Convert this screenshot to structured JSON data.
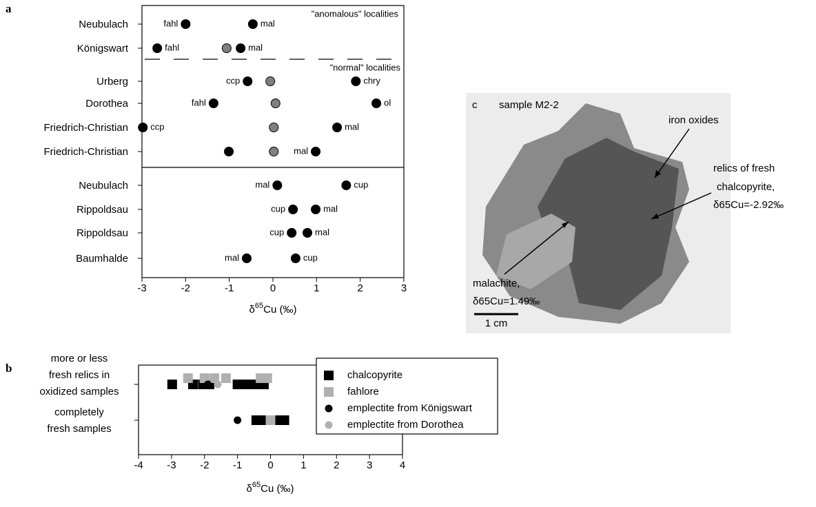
{
  "chart_data": [
    {
      "panel": "a",
      "type": "dot",
      "xlim": [
        -3,
        3
      ],
      "xticks": [
        -3,
        -2,
        -1,
        0,
        1,
        2,
        3
      ],
      "xlabel": {
        "symbol": "δ",
        "sup": "65",
        "rest": "Cu (‰)"
      },
      "annotations": [
        "\"anomalous\" localities",
        "\"normal\" localities"
      ],
      "rows": [
        {
          "name": "Neubulach",
          "points": [
            {
              "x": -2.0,
              "label": "fahl",
              "color": "#000000"
            },
            {
              "x": -0.46,
              "label": "mal",
              "color": "#000000"
            }
          ]
        },
        {
          "name": "Königswart",
          "points": [
            {
              "x": -2.65,
              "label": "fahl",
              "color": "#000000"
            },
            {
              "x": -1.06,
              "color": "#808080"
            },
            {
              "x": -0.74,
              "label": "mal",
              "color": "#000000"
            }
          ]
        },
        {
          "name": "Urberg",
          "points": [
            {
              "x": -0.58,
              "label": "ccp",
              "color": "#000000"
            },
            {
              "x": -0.06,
              "color": "#808080"
            },
            {
              "x": 1.9,
              "label": "chry",
              "color": "#000000"
            }
          ]
        },
        {
          "name": "Dorothea",
          "points": [
            {
              "x": -1.36,
              "label": "fahl",
              "color": "#000000"
            },
            {
              "x": 0.06,
              "color": "#808080"
            },
            {
              "x": 2.37,
              "label": "ol",
              "color": "#000000"
            }
          ]
        },
        {
          "name": "Friedrich-Christian",
          "points": [
            {
              "x": -2.98,
              "label": "ccp",
              "color": "#000000"
            },
            {
              "x": 0.02,
              "color": "#808080"
            },
            {
              "x": 1.47,
              "label": "mal",
              "color": "#000000"
            }
          ]
        },
        {
          "name": "Friedrich-Christian",
          "points": [
            {
              "x": -1.01,
              "color": "#000000"
            },
            {
              "x": 0.02,
              "color": "#808080"
            },
            {
              "x": 0.98,
              "label": "mal",
              "color": "#000000"
            }
          ]
        },
        {
          "name": "Neubulach",
          "points": [
            {
              "x": 0.1,
              "label": "mal",
              "color": "#000000"
            },
            {
              "x": 1.68,
              "label": "cup",
              "color": "#000000"
            }
          ]
        },
        {
          "name": "Rippoldsau",
          "points": [
            {
              "x": 0.46,
              "label": "cup",
              "color": "#000000"
            },
            {
              "x": 0.98,
              "label": "mal",
              "color": "#000000"
            }
          ]
        },
        {
          "name": "Rippoldsau",
          "points": [
            {
              "x": 0.43,
              "label": "cup",
              "color": "#000000"
            },
            {
              "x": 0.79,
              "label": "mal",
              "color": "#000000"
            }
          ]
        },
        {
          "name": "Baumhalde",
          "points": [
            {
              "x": -0.6,
              "label": "mal",
              "color": "#000000"
            },
            {
              "x": 0.52,
              "label": "cup",
              "color": "#000000"
            }
          ]
        }
      ]
    },
    {
      "panel": "b",
      "type": "strip",
      "xlim": [
        -4,
        4
      ],
      "xticks": [
        -4,
        -3,
        -2,
        -1,
        0,
        1,
        2,
        3,
        4
      ],
      "xlabel": {
        "symbol": "δ",
        "sup": "65",
        "rest": "Cu (‰)"
      },
      "categories": [
        [
          "more or less",
          "fresh relics in",
          "oxidized samples"
        ],
        [
          "completely",
          "fresh samples"
        ]
      ],
      "series": [
        {
          "name": "chalcopyrite",
          "marker": "square",
          "color": "#000000",
          "values": [
            [
              -2.98,
              -2.35,
              -2.05,
              -1.85,
              -1.0,
              -0.8,
              -0.6,
              -0.4,
              -0.2
            ],
            [
              -0.43,
              -0.25,
              0.0,
              0.2,
              0.42
            ]
          ]
        },
        {
          "name": "fahlore",
          "marker": "square",
          "color": "#b0b0b0",
          "values": [
            [
              -2.5,
              -2.0,
              -1.7,
              -1.35,
              -0.3,
              -0.1
            ],
            [
              0.0
            ]
          ]
        },
        {
          "name": "emplectite from Königswart",
          "marker": "circle",
          "color": "#000000",
          "values": [
            [
              -1.9
            ],
            [
              -1.0
            ]
          ]
        },
        {
          "name": "emplectite from Dorothea",
          "marker": "circle",
          "color": "#b0b0b0",
          "values": [
            [
              -1.6
            ],
            []
          ]
        }
      ]
    }
  ],
  "photo": {
    "panel": "c",
    "title": "sample M2-2",
    "labels": [
      "iron oxides",
      "relics of fresh",
      "chalcopyrite,",
      "δ65Cu=-2.92‰",
      "malachite,",
      "δ65Cu=1.49‰"
    ],
    "scale": "1 cm"
  }
}
